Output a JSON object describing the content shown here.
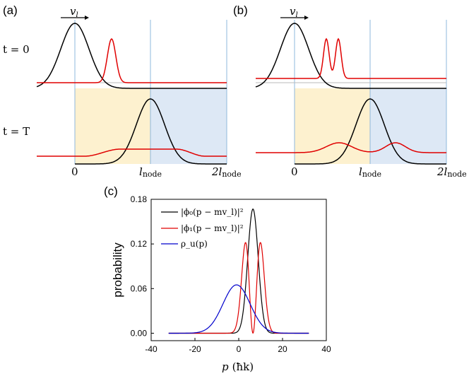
{
  "panel_a": {
    "label": "(a)",
    "velocity_label": "v",
    "velocity_sub": "l",
    "row_top_label": "t = 0",
    "row_bottom_label": "t = T",
    "axis_ticks": [
      "0",
      "l",
      "2l"
    ],
    "tick_sub": "node",
    "colors": {
      "region1": "#fdf1cf",
      "region2": "#dde8f5",
      "guide": "#8fb8dc"
    }
  },
  "panel_b": {
    "label": "(b)",
    "velocity_label": "v",
    "velocity_sub": "l",
    "axis_ticks": [
      "0",
      "l",
      "2l"
    ],
    "tick_sub": "node"
  },
  "panel_c": {
    "label": "(c)",
    "ylabel": "probability",
    "xlabel_main": "p",
    "xlabel_unit": "(ħk)",
    "legend": [
      {
        "text": "|ϕ₀(p − mv_l)|²",
        "color": "#000000"
      },
      {
        "text": "|ϕ₁(p − mv_l)|²",
        "color": "#e00000"
      },
      {
        "text": "ρ_u(p)",
        "color": "#0000cc"
      }
    ],
    "x_ticks": [
      "-40",
      "-20",
      "0",
      "20",
      "40"
    ],
    "y_ticks": [
      "0.00",
      "0.06",
      "0.12",
      "0.18"
    ]
  },
  "chart_data": {
    "type": "line",
    "xlabel": "p (ħk)",
    "ylabel": "probability",
    "xlim": [
      -40,
      40
    ],
    "ylim": [
      -0.01,
      0.18
    ],
    "series": [
      {
        "name": "|ϕ₀(p − mv_l)|²",
        "color": "#000000",
        "shape": "gaussian",
        "center": 6.5,
        "sigma": 2.4,
        "peak": 0.167
      },
      {
        "name": "|ϕ₁(p − mv_l)|²",
        "color": "#e00000",
        "shape": "first-excited",
        "center": 6.5,
        "sigma": 2.4,
        "peak": 0.122
      },
      {
        "name": "ρ_u(p)",
        "color": "#0000cc",
        "shape": "gaussian",
        "center": -1,
        "sigma": 6.2,
        "peak": 0.065
      }
    ],
    "x_range_drawn": [
      -32,
      32
    ]
  }
}
